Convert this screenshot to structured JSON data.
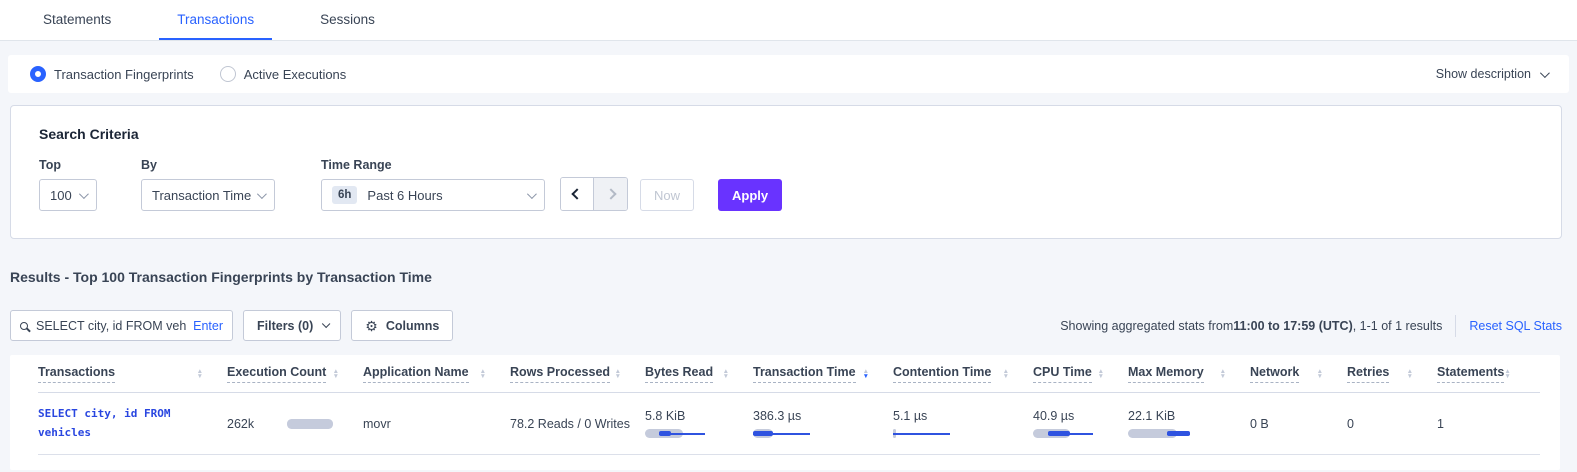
{
  "tabs": {
    "items": [
      {
        "label": "Statements",
        "active": false
      },
      {
        "label": "Transactions",
        "active": true
      },
      {
        "label": "Sessions",
        "active": false
      }
    ]
  },
  "view_toggle": {
    "options": [
      {
        "label": "Transaction Fingerprints",
        "selected": true
      },
      {
        "label": "Active Executions",
        "selected": false
      }
    ],
    "show_description_label": "Show description"
  },
  "search_criteria": {
    "title": "Search Criteria",
    "top": {
      "label": "Top",
      "value": "100"
    },
    "by": {
      "label": "By",
      "value": "Transaction Time"
    },
    "time_range": {
      "label": "Time Range",
      "badge": "6h",
      "value": "Past 6 Hours"
    },
    "now_label": "Now",
    "apply_label": "Apply"
  },
  "results": {
    "heading": "Results - Top 100 Transaction Fingerprints by Transaction Time",
    "search": {
      "value": "SELECT city, id FROM vehicles W",
      "enter_label": "Enter"
    },
    "filters_label": "Filters (0)",
    "columns_label": "Columns",
    "stats_prefix": "Showing aggregated stats from ",
    "stats_range": "11:00 to 17:59 (UTC)",
    "stats_suffix": ", 1-1 of 1 results",
    "reset_label": "Reset SQL Stats"
  },
  "table": {
    "columns": [
      {
        "label": "Transactions",
        "sort": "none"
      },
      {
        "label": "Execution Count",
        "sort": "none"
      },
      {
        "label": "Application Name",
        "sort": "none"
      },
      {
        "label": "Rows Processed",
        "sort": "none"
      },
      {
        "label": "Bytes Read",
        "sort": "none"
      },
      {
        "label": "Transaction Time",
        "sort": "desc"
      },
      {
        "label": "Contention Time",
        "sort": "none"
      },
      {
        "label": "CPU Time",
        "sort": "none"
      },
      {
        "label": "Max Memory",
        "sort": "none"
      },
      {
        "label": "Network",
        "sort": "none"
      },
      {
        "label": "Retries",
        "sort": "none"
      },
      {
        "label": "Statements",
        "sort": "none"
      }
    ],
    "rows": [
      {
        "cells": [
          {
            "type": "link",
            "text": "SELECT city, id FROM vehicles"
          },
          {
            "type": "value-bar-inline",
            "text": "262k",
            "bar": {
              "band": [
                0,
                46
              ]
            }
          },
          {
            "type": "text",
            "text": "movr"
          },
          {
            "type": "text",
            "text": "78.2 Reads / 0 Writes"
          },
          {
            "type": "value-bar",
            "text": "5.8 KiB",
            "bar": {
              "band": [
                0,
                38
              ],
              "seg": [
                14,
                12
              ],
              "line": [
                14,
                46
              ]
            }
          },
          {
            "type": "value-bar",
            "text": "386.3 µs",
            "bar": {
              "band": [
                0,
                20
              ],
              "seg": [
                0,
                20
              ],
              "line": [
                0,
                57
              ]
            }
          },
          {
            "type": "value-bar",
            "text": "5.1 µs",
            "bar": {
              "band": [
                0,
                3
              ],
              "line": [
                0,
                57
              ]
            }
          },
          {
            "type": "value-bar",
            "text": "40.9 µs",
            "bar": {
              "band": [
                0,
                37
              ],
              "seg": [
                15,
                22
              ],
              "line": [
                15,
                45
              ]
            }
          },
          {
            "type": "value-bar",
            "text": "22.1 KiB",
            "bar": {
              "band": [
                0,
                49
              ],
              "seg": [
                39,
                23
              ],
              "line": [
                39,
                23
              ]
            }
          },
          {
            "type": "text",
            "text": "0 B"
          },
          {
            "type": "text",
            "text": "0"
          },
          {
            "type": "text",
            "text": "1"
          }
        ]
      }
    ]
  },
  "colors": {
    "accent_blue": "#2962FF",
    "apply_purple": "#6933FF",
    "sql_link_blue": "#2946E0",
    "bar_band_grey": "#C5CBDC",
    "bar_blue": "#2F53E0",
    "page_background": "#F4F6FA"
  }
}
